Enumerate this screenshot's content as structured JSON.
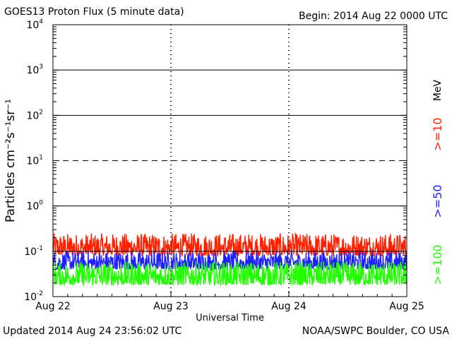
{
  "header": {
    "title": "GOES13 Proton Flux (5 minute data)",
    "begin": "Begin: 2014 Aug 22 0000 UTC"
  },
  "footer": {
    "updated": "Updated 2014 Aug 24 23:56:02 UTC",
    "credit": "NOAA/SWPC Boulder, CO USA"
  },
  "chart_data": {
    "type": "line",
    "title": "GOES13 Proton Flux (5 minute data)",
    "xlabel": "Universal Time",
    "ylabel": "Particles cm⁻²s⁻¹sr⁻¹",
    "unit_label": "MeV",
    "x_tick_labels": [
      "Aug 22",
      "Aug 23",
      "Aug 24",
      "Aug 25"
    ],
    "x_range_days": [
      0,
      3
    ],
    "y_scale": "log",
    "ylim": [
      0.01,
      10000
    ],
    "y_tick_labels": [
      {
        "base": "10",
        "exp": "-2"
      },
      {
        "base": "10",
        "exp": "-1"
      },
      {
        "base": "10",
        "exp": "0"
      },
      {
        "base": "10",
        "exp": "1"
      },
      {
        "base": "10",
        "exp": "2"
      },
      {
        "base": "10",
        "exp": "3"
      },
      {
        "base": "10",
        "exp": "4"
      }
    ],
    "reference_lines": [
      {
        "value": 10,
        "style": "dashed"
      },
      {
        "value": 0.1,
        "style": "solid"
      }
    ],
    "series": [
      {
        "name": ">=10",
        "color": "#ff2000",
        "typical_low": 0.08,
        "typical_high": 0.25
      },
      {
        "name": ">=50",
        "color": "#2020ff",
        "typical_low": 0.04,
        "typical_high": 0.1
      },
      {
        "name": ">=100",
        "color": "#20ff00",
        "typical_low": 0.018,
        "typical_high": 0.06
      }
    ],
    "grid": false
  }
}
